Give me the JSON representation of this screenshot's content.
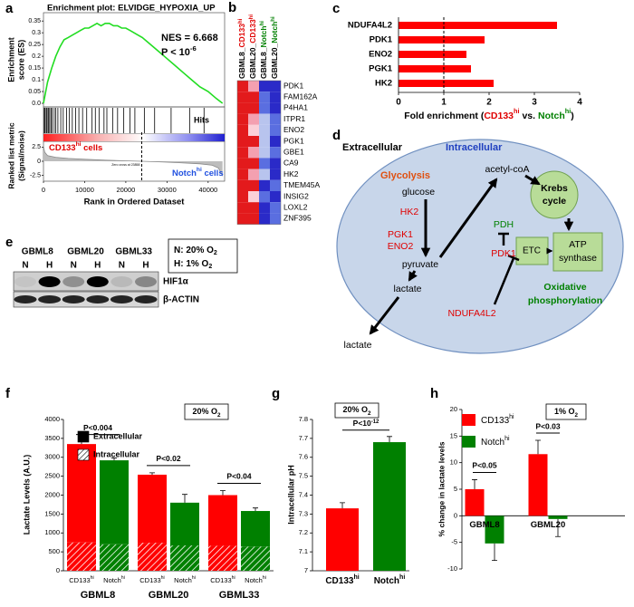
{
  "panel_labels": [
    "a",
    "b",
    "c",
    "d",
    "e",
    "f",
    "g",
    "h"
  ],
  "chart_data": [
    {
      "type": "gsea",
      "title": "Enrichment  plot: ELVIDGE_HYPOXIA_UP",
      "es_label": [
        "Enrichment",
        "score (ES)"
      ],
      "nes": "NES = 6.668",
      "p": [
        {
          "text": "P < 10"
        },
        {
          "text": "-6",
          "shift": "super"
        }
      ],
      "hits_label": "Hits",
      "left_label": [
        {
          "text": "CD133",
          "color": "#e00000"
        },
        {
          "text": "hi",
          "shift": "super",
          "color": "#e00000"
        },
        {
          "text": " cells",
          "color": "#e00000"
        }
      ],
      "right_label": [
        {
          "text": "Notch",
          "color": "#2050e0"
        },
        {
          "text": "hi",
          "shift": "super",
          "color": "#2050e0"
        },
        {
          "text": " cells",
          "color": "#2050e0"
        }
      ],
      "zero_cross_label": "Zero cross at 23858",
      "zero_cross": 23858,
      "metric_label": [
        "Ranked list metric",
        "(Signal/noise)"
      ],
      "xlabel": "Rank in Ordered Dataset",
      "xlim": [
        0,
        44000
      ],
      "xticks": [
        0,
        10000,
        20000,
        30000,
        40000
      ],
      "es_ylim": [
        0,
        0.37
      ],
      "es_yticks": [
        0.35,
        0.3,
        0.25,
        0.2,
        0.15,
        0.1,
        0.05,
        {
          "value": 0,
          "label": "0.0"
        }
      ],
      "metric_ylim": [
        -3.2,
        3.2
      ],
      "metric_yticks": [
        2.5,
        0,
        -2.5
      ],
      "curve_color": "#22dd22",
      "x": [
        0,
        1000,
        2000,
        3000,
        4000,
        5000,
        6000,
        7000,
        8000,
        9000,
        10000,
        11000,
        12000,
        13000,
        14000,
        15000,
        16000,
        17000,
        18000,
        19000,
        20000,
        21000,
        22000,
        23000,
        24000,
        26000,
        28000,
        30000,
        32000,
        34000,
        36000,
        38000,
        40000,
        42000,
        43500
      ],
      "es": [
        0,
        0.09,
        0.15,
        0.2,
        0.24,
        0.27,
        0.28,
        0.29,
        0.3,
        0.31,
        0.32,
        0.32,
        0.33,
        0.34,
        0.33,
        0.34,
        0.34,
        0.33,
        0.33,
        0.32,
        0.32,
        0.31,
        0.3,
        0.29,
        0.28,
        0.25,
        0.22,
        0.19,
        0.16,
        0.13,
        0.1,
        0.07,
        0.05,
        0.02,
        0
      ],
      "hits": [
        200,
        400,
        700,
        900,
        1200,
        1500,
        1800,
        2100,
        2600,
        3000,
        3500,
        4200,
        4800,
        5600,
        6300,
        7000,
        7800,
        8600,
        9500,
        10500,
        11800,
        12600,
        13500,
        14700,
        15400,
        16800,
        18000,
        19500,
        21000,
        22200,
        24500,
        27000,
        31000,
        35500,
        39000
      ],
      "metric_x": [
        0,
        300,
        1000,
        3000,
        6000,
        10000,
        15000,
        20000,
        23858,
        28000,
        33000,
        38000,
        41000,
        42500,
        43500
      ],
      "metric": [
        2.6,
        1.6,
        1.0,
        0.7,
        0.5,
        0.35,
        0.2,
        0.08,
        0,
        -0.1,
        -0.25,
        -0.45,
        -0.7,
        -1.2,
        -2.6
      ]
    },
    {
      "type": "hbar",
      "categories": [
        "NDUFA4L2",
        "PDK1",
        "ENO2",
        "PGK1",
        "HK2"
      ],
      "values": [
        3.5,
        1.9,
        1.5,
        1.6,
        2.1
      ],
      "color": "#ff0000",
      "xlim": [
        0,
        4
      ],
      "xticks": [
        0,
        1,
        2,
        3,
        4
      ],
      "reference": 1,
      "xlabel": [
        {
          "text": "Fold enrichment ("
        },
        {
          "text": "CD133",
          "color": "#e00000"
        },
        {
          "text": "hi",
          "shift": "super",
          "color": "#e00000"
        },
        {
          "text": " vs. "
        },
        {
          "text": "Notch",
          "color": "#008000"
        },
        {
          "text": "hi",
          "shift": "super",
          "color": "#008000"
        },
        {
          "text": ")"
        }
      ]
    },
    {
      "type": "stacked",
      "groups": [
        "GBML8",
        "GBML20",
        "GBML33"
      ],
      "bar_labels": [
        [
          {
            "text": "CD133"
          },
          {
            "text": "hi",
            "shift": "super"
          }
        ],
        [
          {
            "text": "Notch"
          },
          {
            "text": "hi",
            "shift": "super"
          }
        ]
      ],
      "colors": [
        "#ff0000",
        "#008000"
      ],
      "legend_color": "#000000",
      "series": [
        {
          "name": "Intracellular",
          "pattern": "hatch",
          "values": [
            750,
            700,
            740,
            670,
            660,
            640
          ]
        },
        {
          "name": "Extracellular",
          "pattern": "solid",
          "values": [
            2600,
            2220,
            1800,
            1130,
            1340,
            940
          ],
          "errors": [
            60,
            60,
            50,
            220,
            120,
            80
          ]
        }
      ],
      "ylim": [
        0,
        4000
      ],
      "yticks": [
        0,
        500,
        1000,
        1500,
        2000,
        2500,
        3000,
        3500,
        4000
      ],
      "ylabel": "Lactate Levels (A.U.)",
      "condition": [
        {
          "text": "20% O"
        },
        {
          "text": "2",
          "shift": "sub"
        }
      ],
      "pvalues": [
        "P<0.004",
        "P<0.02",
        "P<0.04"
      ]
    },
    {
      "type": "bar",
      "categories": [
        [
          {
            "text": "CD133"
          },
          {
            "text": "hi",
            "shift": "super"
          }
        ],
        [
          {
            "text": "Notch"
          },
          {
            "text": "hi",
            "shift": "super"
          }
        ]
      ],
      "values": [
        7.33,
        7.68
      ],
      "errors": [
        0.03,
        0.03
      ],
      "colors": [
        "#ff0000",
        "#008000"
      ],
      "ylim": [
        7,
        7.8
      ],
      "yticks": [
        7,
        7.1,
        7.2,
        7.3,
        7.4,
        7.5,
        7.6,
        7.7,
        7.8
      ],
      "ylabel": "Intracellular pH",
      "condition": [
        {
          "text": "20% O"
        },
        {
          "text": "2",
          "shift": "sub"
        }
      ],
      "pvalue": [
        {
          "text": "P<10"
        },
        {
          "text": "-12",
          "shift": "super"
        }
      ]
    },
    {
      "type": "grouped",
      "categories": [
        "GBML8",
        "GBML20"
      ],
      "series": [
        {
          "name": [
            {
              "text": "CD133"
            },
            {
              "text": "hi",
              "shift": "super"
            }
          ],
          "color": "#ff0000",
          "values": [
            5,
            11.6
          ],
          "errors": [
            1.8,
            2.6
          ]
        },
        {
          "name": [
            {
              "text": "Notch"
            },
            {
              "text": "hi",
              "shift": "super"
            }
          ],
          "color": "#008000",
          "values": [
            -5.2,
            -0.6
          ],
          "errors": [
            3.2,
            3.3
          ]
        }
      ],
      "ylim": [
        -10,
        20
      ],
      "yticks": [
        -10,
        -5,
        0,
        5,
        10,
        15,
        20
      ],
      "ylabel": "% change in lactate levels",
      "condition": [
        {
          "text": "1% O"
        },
        {
          "text": "2",
          "shift": "sub"
        }
      ],
      "pvalues": [
        "P<0.05",
        "P<0.03"
      ]
    }
  ],
  "heatmap": {
    "columns": [
      [
        {
          "text": "GBML8_"
        },
        {
          "text": "CD133",
          "color": "#e00000"
        },
        {
          "text": "hi",
          "shift": "super",
          "color": "#e00000"
        }
      ],
      [
        {
          "text": "GBML20_"
        },
        {
          "text": "CD133",
          "color": "#e00000"
        },
        {
          "text": "hi",
          "shift": "super",
          "color": "#e00000"
        }
      ],
      [
        {
          "text": "GBML8_"
        },
        {
          "text": "Notch",
          "color": "#008000"
        },
        {
          "text": "hi",
          "shift": "super",
          "color": "#008000"
        }
      ],
      [
        {
          "text": "GBML20_"
        },
        {
          "text": "Notch",
          "color": "#008000"
        },
        {
          "text": "hi",
          "shift": "super",
          "color": "#008000"
        }
      ]
    ],
    "rows": [
      "PDK1",
      "FAM162A",
      "P4HA1",
      "ITPR1",
      "ENO2",
      "PGK1",
      "GBE1",
      "CA9",
      "HK2",
      "TMEM45A",
      "INSIG2",
      "LOXL2",
      "ZNF395"
    ],
    "colors": [
      [
        "#e31a1c",
        "#f4a0b0",
        "#2a2ac8",
        "#2a2ac8"
      ],
      [
        "#e31a1c",
        "#e31a1c",
        "#5a6ee0",
        "#2a2ac8"
      ],
      [
        "#e31a1c",
        "#e31a1c",
        "#5a6ee0",
        "#2a2ac8"
      ],
      [
        "#e31a1c",
        "#f4a0b0",
        "#b8c4ee",
        "#5a6ee0"
      ],
      [
        "#e31a1c",
        "#fbd0d8",
        "#b8c4ee",
        "#5a6ee0"
      ],
      [
        "#e31a1c",
        "#e31a1c",
        "#b8c4ee",
        "#2a2ac8"
      ],
      [
        "#e31a1c",
        "#f4a0b0",
        "#b8c4ee",
        "#5a6ee0"
      ],
      [
        "#e31a1c",
        "#e31a1c",
        "#5a6ee0",
        "#2a2ac8"
      ],
      [
        "#e31a1c",
        "#f4a0b0",
        "#b8c4ee",
        "#2a2ac8"
      ],
      [
        "#e31a1c",
        "#e31a1c",
        "#2a2ac8",
        "#5a6ee0"
      ],
      [
        "#e31a1c",
        "#fbd0d8",
        "#5a6ee0",
        "#2a2ac8"
      ],
      [
        "#e31a1c",
        "#e31a1c",
        "#2a2ac8",
        "#5a6ee0"
      ],
      [
        "#e31a1c",
        "#e31a1c",
        "#2a2ac8",
        "#5a6ee0"
      ]
    ]
  },
  "diagram": {
    "extracellular": "Extracellular",
    "intracellular": "Intracellular",
    "glycolysis": "Glycolysis",
    "glucose": "glucose",
    "hk2": "HK2",
    "pgk1": "PGK1",
    "eno2": "ENO2",
    "pyruvate": "pyruvate",
    "lactate_in": "lactate",
    "lactate_out": "lactate",
    "acetyl_coa": "acetyl-coA",
    "krebs": [
      "Krebs",
      "cycle"
    ],
    "pdh": "PDH",
    "pdk1": "PDK1",
    "etc": "ETC",
    "atp": [
      "ATP",
      "synthase"
    ],
    "ndufa4l2": "NDUFA4L2",
    "oxphos": [
      "Oxidative",
      "phosphorylation"
    ]
  },
  "blot": {
    "cell_lines": [
      "GBML8",
      "GBML20",
      "GBML33"
    ],
    "conditions": [
      "N",
      "H"
    ],
    "legend": [
      [
        {
          "text": "N: 20% O"
        },
        {
          "text": "2",
          "shift": "sub"
        }
      ],
      [
        {
          "text": "H: 1% O"
        },
        {
          "text": "2",
          "shift": "sub"
        }
      ]
    ],
    "bands": [
      "HIF1α",
      "β-ACTIN"
    ]
  }
}
